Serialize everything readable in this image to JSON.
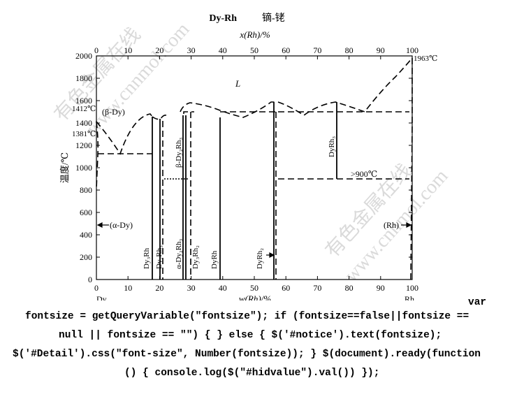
{
  "title": "Dy-Rh",
  "title_cn": "镝-铑",
  "top_axis_label": "x(Rh)/%",
  "bottom_axis_label": "w(Rh)/%",
  "y_axis_label": "温度/℃",
  "top_ticks": [
    "0",
    "10",
    "20",
    "30",
    "40",
    "50",
    "60",
    "70",
    "80",
    "90",
    "100"
  ],
  "bottom_ticks": [
    "0",
    "10",
    "20",
    "30",
    "40",
    "50",
    "60",
    "70",
    "80",
    "90",
    "100"
  ],
  "y_ticks": [
    "0",
    "200",
    "400",
    "600",
    "800",
    "1000",
    "1200",
    "1400",
    "1600",
    "1800",
    "2000"
  ],
  "left_element": "Dy",
  "right_element": "Rh",
  "annotations": {
    "melt_dy": "1412℃",
    "trans_dy": "1381℃",
    "melt_rh": "1963℃",
    "liquid": "L",
    "beta_dy": "(β-Dy)",
    "alpha_dy": "(α-Dy)",
    "rh_phase": "(Rh)",
    "temp_900": ">900℃"
  },
  "phases": {
    "dy3rh": "Dy₃Rh",
    "dy7rh3": "Dy₇Rh₃",
    "alpha_dy2rh3": "α-Dy₂Rh₃",
    "beta_dy2rh3": "β-Dy₂Rh₃",
    "dy3rh2": "Dy₃Rh₂",
    "dyrh": "DyRh",
    "dyrh2": "DyRh₂",
    "dyrh3": "DyRh₃"
  },
  "watermarks": [
    "有色金属在线",
    "www.cnnmol.com"
  ],
  "code_lines": [
    "var",
    "fontsize = getQueryVariable(\"fontsize\"); if (fontsize==false||fontsize ==",
    "null || fontsize == \"\") { } else { $('#notice').text(fontsize);",
    "$('#Detail').css(\"font-size\", Number(fontsize)); } $(document).ready(function",
    "() { console.log($(\"#hidvalue\").val()) });"
  ]
}
